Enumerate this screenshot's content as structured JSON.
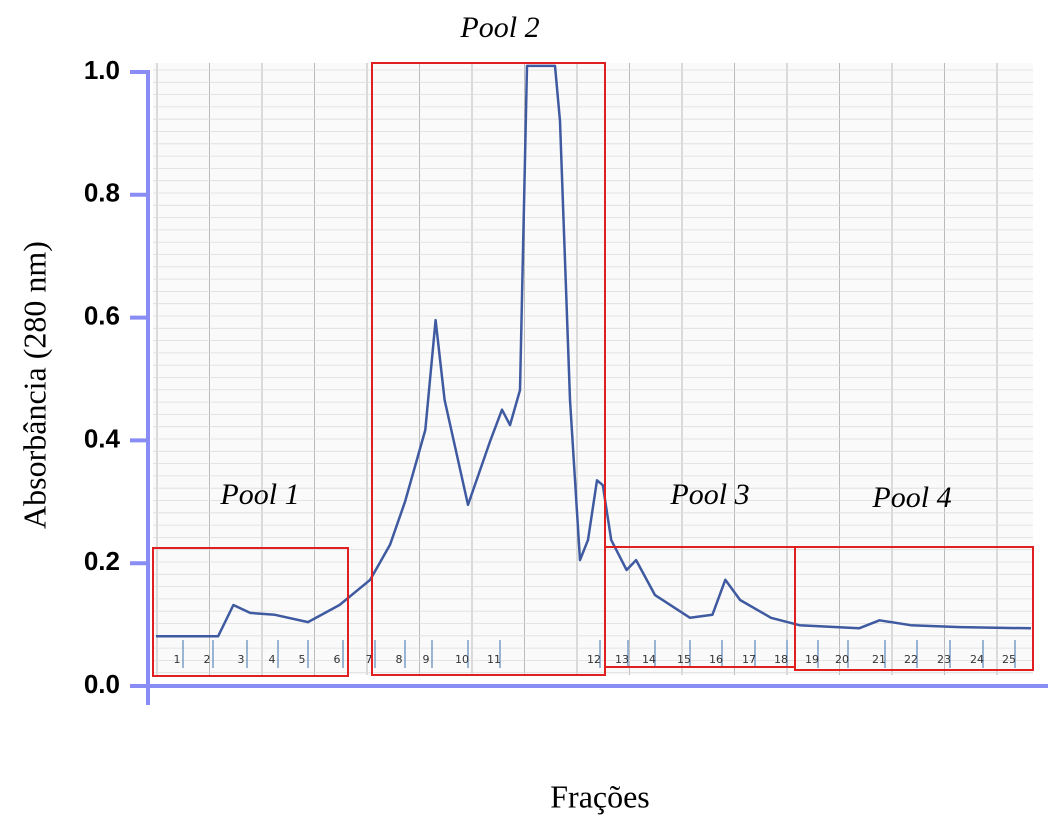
{
  "chart_data": {
    "type": "line",
    "y_label": "Absorbância (280 nm)",
    "x_label": "Frações",
    "ylim": [
      0,
      1
    ],
    "yticks": [
      {
        "value": 0,
        "label": "0.0"
      },
      0.2,
      0.4,
      0.6,
      0.8,
      {
        "value": 1,
        "label": "1.0"
      }
    ],
    "xticks": [
      1,
      2,
      3,
      4,
      5,
      6,
      7,
      8,
      9,
      10,
      11,
      12,
      13,
      14,
      15,
      16,
      17,
      18,
      19,
      20,
      21,
      22,
      23,
      24,
      25
    ],
    "x": [
      0.1,
      2.15,
      2.6,
      3.1,
      3.9,
      5,
      5.9,
      6.85,
      7.5,
      8,
      8.75,
      9.1,
      9.35,
      10,
      10.7,
      11.02,
      11.1,
      11.2,
      11.27,
      11.55,
      11.6,
      11.7,
      11.8,
      11.88,
      11.97,
      12.1,
      12.4,
      12.95,
      13.3,
      14,
      15,
      15.7,
      16.1,
      16.55,
      17.5,
      18.4,
      20.3,
      20.85,
      21.8,
      23.3,
      25.5
    ],
    "values": [
      0.081,
      0.081,
      0.132,
      0.119,
      0.116,
      0.104,
      0.132,
      0.173,
      0.23,
      0.3,
      0.417,
      0.596,
      0.466,
      0.295,
      0.4,
      0.45,
      0.425,
      0.482,
      1.01,
      1.01,
      0.92,
      0.466,
      0.205,
      0.238,
      0.335,
      0.327,
      0.238,
      0.189,
      0.205,
      0.148,
      0.111,
      0.116,
      0.173,
      0.14,
      0.111,
      0.099,
      0.094,
      0.107,
      0.099,
      0.096,
      0.094
    ],
    "color": "#3f5aa0",
    "annotations": [
      "Pool 1",
      "Pool 2",
      "Pool 3",
      "Pool 4"
    ]
  }
}
